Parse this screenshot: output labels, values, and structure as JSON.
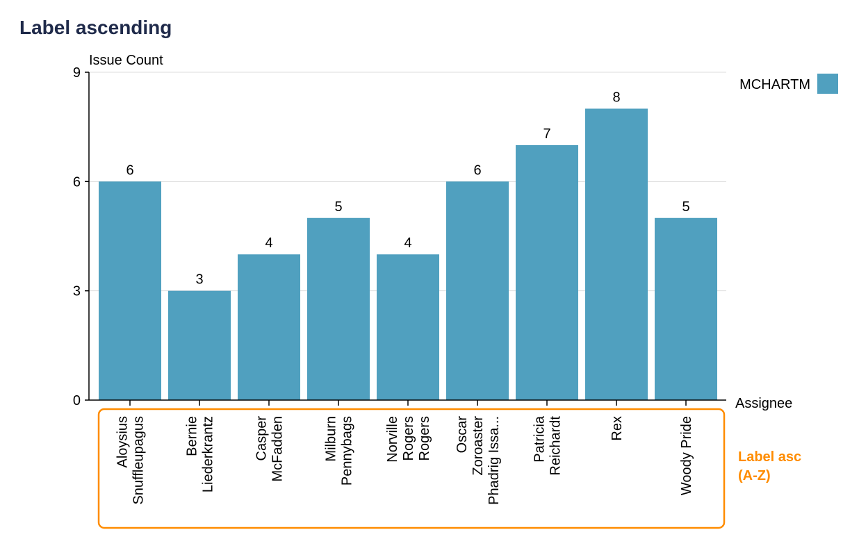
{
  "page_title": "Label ascending",
  "sort_note": [
    "Label asc",
    "(A-Z)"
  ],
  "colors": {
    "bar": "#50a0bf",
    "highlight": "#ff8c00",
    "title": "#1f2a4a"
  },
  "chart_data": {
    "type": "bar",
    "title": "Label ascending",
    "xlabel": "Assignee",
    "ylabel": "Issue Count",
    "ylim": [
      0,
      9
    ],
    "yticks": [
      0,
      3,
      6,
      9
    ],
    "grid": true,
    "legend_position": "top-right",
    "categories": [
      [
        "Aloysius",
        "Snuffleupagus"
      ],
      [
        "Bernie",
        "Liederkrantz"
      ],
      [
        "Casper",
        "McFadden"
      ],
      [
        "Milburn",
        "Pennybags"
      ],
      [
        "Norville",
        "Rogers",
        "Rogers"
      ],
      [
        "Oscar",
        "Zoroaster",
        "Phadrig Issa..."
      ],
      [
        "Patricia",
        "Reichardt"
      ],
      [
        "Rex"
      ],
      [
        "Woody Pride"
      ]
    ],
    "series": [
      {
        "name": "MCHARTM",
        "values": [
          6,
          3,
          4,
          5,
          4,
          6,
          7,
          8,
          5
        ]
      }
    ]
  }
}
